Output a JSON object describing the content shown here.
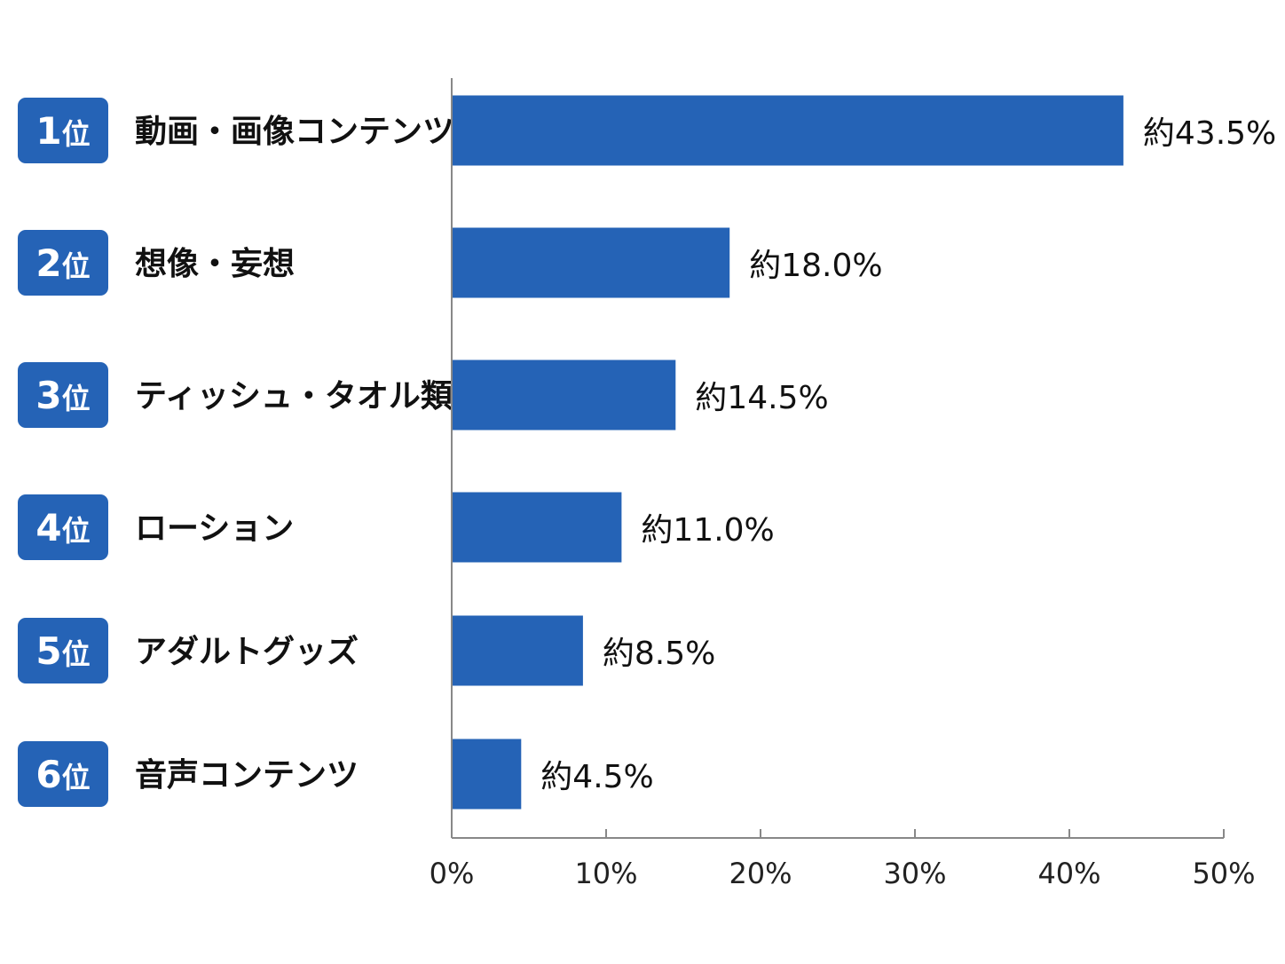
{
  "colors": {
    "bar": "#2563b6",
    "badge": "#2563b6",
    "badge_text": "#ffffff",
    "label_text": "#111111",
    "axis": "#888888",
    "background": "#ffffff"
  },
  "chart_data": {
    "type": "bar",
    "orientation": "horizontal",
    "title": "",
    "xlabel": "",
    "ylabel": "",
    "grid": false,
    "legend": "none",
    "xlim": [
      0,
      50
    ],
    "x_ticks": [
      0,
      10,
      20,
      30,
      40,
      50
    ],
    "x_tick_labels": [
      "0%",
      "10%",
      "20%",
      "30%",
      "40%",
      "50%"
    ],
    "ranks": [
      "1位",
      "2位",
      "3位",
      "4位",
      "5位",
      "6位"
    ],
    "categories": [
      "動画・画像コンテンツ",
      "想像・妄想",
      "ティッシュ・タオル類",
      "ローション",
      "アダルトグッズ",
      "音声コンテンツ"
    ],
    "values": [
      43.5,
      18.0,
      14.5,
      11.0,
      8.5,
      4.5
    ],
    "value_labels": [
      "約43.5%",
      "約18.0%",
      "約14.5%",
      "約11.0%",
      "約8.5%",
      "約4.5%"
    ]
  }
}
